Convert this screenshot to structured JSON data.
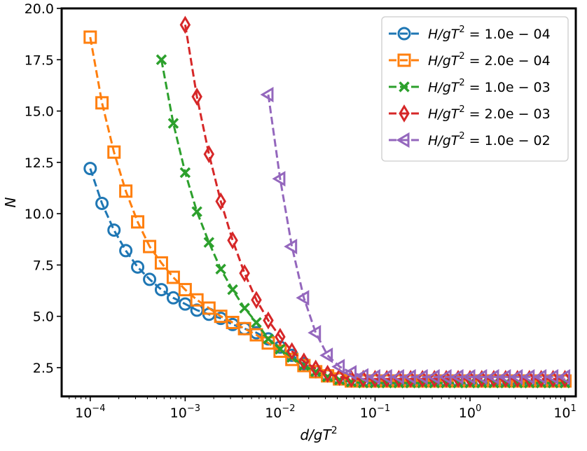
{
  "chart_data": {
    "type": "line",
    "xlabel": "d/gT²",
    "ylabel": "N",
    "xscale": "log",
    "xlim": [
      5e-05,
      13
    ],
    "ylim": [
      1.1,
      20.0
    ],
    "grid": false,
    "legend_position": "top-right",
    "x_ticks": [
      {
        "value": 0.0001,
        "base": "10",
        "exp": "−4"
      },
      {
        "value": 0.001,
        "base": "10",
        "exp": "−3"
      },
      {
        "value": 0.01,
        "base": "10",
        "exp": "−2"
      },
      {
        "value": 0.1,
        "base": "10",
        "exp": "−1"
      },
      {
        "value": 1,
        "base": "10",
        "exp": "0"
      },
      {
        "value": 10,
        "base": "10",
        "exp": "1"
      }
    ],
    "y_ticks": [
      {
        "value": 2.5,
        "label": "2.5"
      },
      {
        "value": 5.0,
        "label": "5.0"
      },
      {
        "value": 7.5,
        "label": "7.5"
      },
      {
        "value": 10.0,
        "label": "10.0"
      },
      {
        "value": 12.5,
        "label": "12.5"
      },
      {
        "value": 15.0,
        "label": "15.0"
      },
      {
        "value": 17.5,
        "label": "17.5"
      },
      {
        "value": 20.0,
        "label": "20.0"
      }
    ],
    "series": [
      {
        "name": "H/gT² = 1.0e − 04",
        "legend_prefix": "H/gT",
        "legend_exp": "2",
        "legend_value": " = 1.0e − 04",
        "color": "#1f77b4",
        "marker": "circle",
        "x": [
          0.0001,
          0.000133,
          0.000178,
          0.000237,
          0.000316,
          0.000422,
          0.000562,
          0.00075,
          0.001,
          0.00133,
          0.00178,
          0.00237,
          0.00316,
          0.00422,
          0.00562,
          0.0075,
          0.01,
          0.0133,
          0.0178,
          0.0237,
          0.0316,
          0.0422,
          0.0562,
          0.075,
          0.1,
          0.133,
          0.178,
          0.237,
          0.316,
          0.422,
          0.562,
          0.75,
          1.0,
          1.33,
          1.78,
          2.37,
          3.16,
          4.22,
          5.62,
          7.5,
          10.0
        ],
        "y": [
          12.2,
          10.5,
          9.2,
          8.2,
          7.4,
          6.8,
          6.3,
          5.9,
          5.6,
          5.3,
          5.1,
          4.9,
          4.6,
          4.4,
          4.2,
          3.9,
          3.5,
          3.1,
          2.7,
          2.3,
          2.1,
          1.95,
          1.85,
          1.85,
          1.85,
          1.85,
          1.85,
          1.85,
          1.85,
          1.85,
          1.85,
          1.85,
          1.85,
          1.85,
          1.85,
          1.85,
          1.85,
          1.85,
          1.85,
          1.85,
          1.85
        ]
      },
      {
        "name": "H/gT² = 2.0e − 04",
        "legend_prefix": "H/gT",
        "legend_exp": "2",
        "legend_value": " = 2.0e − 04",
        "color": "#ff7f0e",
        "marker": "square",
        "x": [
          0.0001,
          0.000133,
          0.000178,
          0.000237,
          0.000316,
          0.000422,
          0.000562,
          0.00075,
          0.001,
          0.00133,
          0.00178,
          0.00237,
          0.00316,
          0.00422,
          0.00562,
          0.0075,
          0.01,
          0.0133,
          0.0178,
          0.0237,
          0.0316,
          0.0422,
          0.0562,
          0.075,
          0.1,
          0.133,
          0.178,
          0.237,
          0.316,
          0.422,
          0.562,
          0.75,
          1.0,
          1.33,
          1.78,
          2.37,
          3.16,
          4.22,
          5.62,
          7.5,
          10.0
        ],
        "y": [
          18.6,
          15.4,
          13.0,
          11.1,
          9.6,
          8.4,
          7.6,
          6.9,
          6.3,
          5.8,
          5.4,
          5.0,
          4.7,
          4.4,
          4.1,
          3.7,
          3.3,
          2.9,
          2.6,
          2.3,
          2.1,
          1.95,
          1.85,
          1.85,
          1.85,
          1.85,
          1.85,
          1.85,
          1.85,
          1.85,
          1.85,
          1.85,
          1.85,
          1.85,
          1.85,
          1.85,
          1.85,
          1.85,
          1.85,
          1.85,
          1.85
        ]
      },
      {
        "name": "H/gT² = 1.0e − 03",
        "legend_prefix": "H/gT",
        "legend_exp": "2",
        "legend_value": " = 1.0e − 03",
        "color": "#2ca02c",
        "marker": "x",
        "x": [
          0.000562,
          0.00075,
          0.001,
          0.00133,
          0.00178,
          0.00237,
          0.00316,
          0.00422,
          0.00562,
          0.0075,
          0.01,
          0.0133,
          0.0178,
          0.0237,
          0.0316,
          0.0422,
          0.0562,
          0.075,
          0.1,
          0.133,
          0.178,
          0.237,
          0.316,
          0.422,
          0.562,
          0.75,
          1.0,
          1.33,
          1.78,
          2.37,
          3.16,
          4.22,
          5.62,
          7.5,
          10.0
        ],
        "y": [
          17.5,
          14.4,
          12.0,
          10.1,
          8.6,
          7.3,
          6.3,
          5.4,
          4.7,
          3.9,
          3.4,
          3.0,
          2.6,
          2.3,
          2.05,
          1.9,
          1.8,
          1.75,
          1.75,
          1.75,
          1.75,
          1.75,
          1.75,
          1.75,
          1.75,
          1.75,
          1.75,
          1.75,
          1.75,
          1.75,
          1.75,
          1.75,
          1.75,
          1.75,
          1.75
        ]
      },
      {
        "name": "H/gT² = 2.0e − 03",
        "legend_prefix": "H/gT",
        "legend_exp": "2",
        "legend_value": " = 2.0e − 03",
        "color": "#d62728",
        "marker": "thin_diamond",
        "x": [
          0.001,
          0.00133,
          0.00178,
          0.00237,
          0.00316,
          0.00422,
          0.00562,
          0.0075,
          0.01,
          0.0133,
          0.0178,
          0.0237,
          0.0316,
          0.0422,
          0.0562,
          0.075,
          0.1,
          0.133,
          0.178,
          0.237,
          0.316,
          0.422,
          0.562,
          0.75,
          1.0,
          1.33,
          1.78,
          2.37,
          3.16,
          4.22,
          5.62,
          7.5,
          10.0
        ],
        "y": [
          19.2,
          15.7,
          12.9,
          10.6,
          8.7,
          7.1,
          5.8,
          4.8,
          4.0,
          3.3,
          2.8,
          2.45,
          2.2,
          2.05,
          1.95,
          1.95,
          1.95,
          1.95,
          1.95,
          1.95,
          1.95,
          1.95,
          1.95,
          1.95,
          1.95,
          1.95,
          1.95,
          1.95,
          1.95,
          1.95,
          1.95,
          1.95,
          1.95
        ]
      },
      {
        "name": "H/gT² = 1.0e − 02",
        "legend_prefix": "H/gT",
        "legend_exp": "2",
        "legend_value": " = 1.0e − 02",
        "color": "#9467bd",
        "marker": "triangle_left",
        "x": [
          0.0075,
          0.01,
          0.0133,
          0.0178,
          0.0237,
          0.0316,
          0.0422,
          0.0562,
          0.075,
          0.1,
          0.133,
          0.178,
          0.237,
          0.316,
          0.422,
          0.562,
          0.75,
          1.0,
          1.33,
          1.78,
          2.37,
          3.16,
          4.22,
          5.62,
          7.5,
          10.0
        ],
        "y": [
          15.8,
          11.7,
          8.4,
          5.9,
          4.2,
          3.1,
          2.55,
          2.25,
          2.1,
          2.05,
          2.05,
          2.05,
          2.05,
          2.05,
          2.05,
          2.05,
          2.05,
          2.05,
          2.05,
          2.05,
          2.05,
          2.05,
          2.05,
          2.05,
          2.05,
          2.05
        ]
      }
    ]
  }
}
